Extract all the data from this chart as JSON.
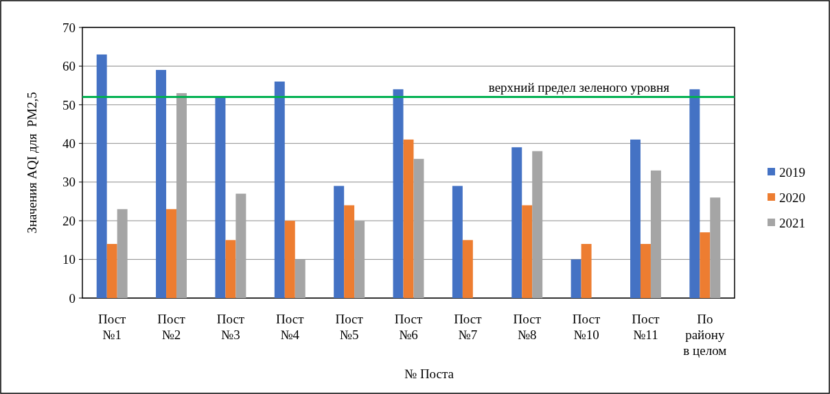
{
  "chart_data": {
    "type": "bar",
    "categories": [
      "Пост\n№1",
      "Пост\n№2",
      "Пост\n№3",
      "Пост\n№4",
      "Пост\n№5",
      "Пост\n№6",
      "Пост\n№7",
      "Пост\n№8",
      "Пост\n№10",
      "Пост\n№11",
      "По\nрайону\nв целом"
    ],
    "series": [
      {
        "name": "2019",
        "color": "#4472c4",
        "values": [
          63,
          59,
          52,
          56,
          29,
          54,
          29,
          39,
          10,
          41,
          54
        ]
      },
      {
        "name": "2020",
        "color": "#ed7d31",
        "values": [
          14,
          23,
          15,
          20,
          24,
          41,
          15,
          24,
          14,
          14,
          17
        ]
      },
      {
        "name": "2021",
        "color": "#a5a5a5",
        "values": [
          23,
          53,
          27,
          10,
          20,
          36,
          null,
          38,
          null,
          33,
          26
        ]
      }
    ],
    "xlabel": "№ Поста",
    "ylabel": "Значения AQI для  PM2,5",
    "ylim": [
      0,
      70
    ],
    "yticks": [
      0,
      10,
      20,
      30,
      40,
      50,
      60,
      70
    ],
    "grid": "y",
    "legend": "right",
    "ref_lines": [
      {
        "axis": "y",
        "value": 52,
        "label": "верхний предел зеленого уровня",
        "color": "#00b050"
      }
    ]
  }
}
